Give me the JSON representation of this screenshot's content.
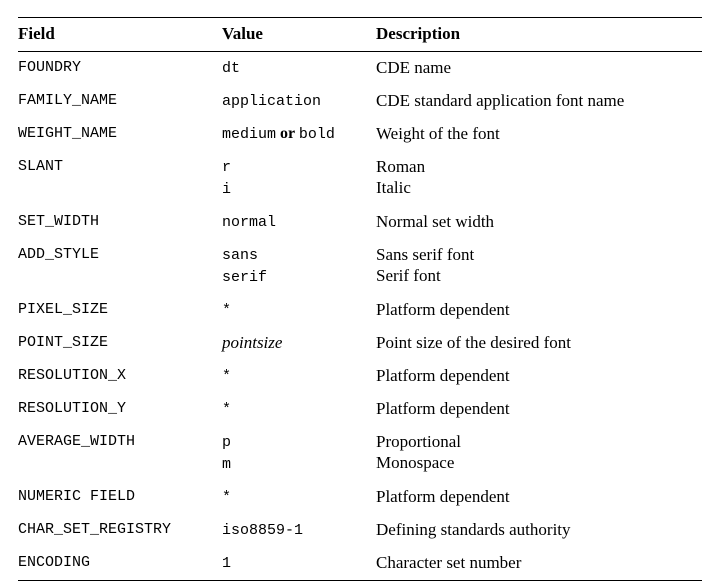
{
  "colors": {
    "background": "#ffffff",
    "text": "#000000",
    "rule": "#000000"
  },
  "table": {
    "headers": [
      "Field",
      "Value",
      "Description"
    ],
    "rows": [
      {
        "field": "FOUNDRY",
        "value_lines": [
          [
            {
              "t": "dt",
              "s": "mono"
            }
          ]
        ],
        "desc_lines": [
          "CDE name"
        ]
      },
      {
        "field": "FAMILY_NAME",
        "value_lines": [
          [
            {
              "t": "application",
              "s": "mono"
            }
          ]
        ],
        "desc_lines": [
          "CDE standard application font name"
        ]
      },
      {
        "field": "WEIGHT_NAME",
        "value_lines": [
          [
            {
              "t": "medium",
              "s": "mono"
            },
            {
              "t": " or ",
              "s": "or"
            },
            {
              "t": "bold",
              "s": "mono"
            }
          ]
        ],
        "desc_lines": [
          "Weight of the font"
        ]
      },
      {
        "field": "SLANT",
        "value_lines": [
          [
            {
              "t": "r",
              "s": "mono"
            }
          ],
          [
            {
              "t": "i",
              "s": "mono"
            }
          ]
        ],
        "desc_lines": [
          "Roman",
          "Italic"
        ]
      },
      {
        "field": "SET_WIDTH",
        "value_lines": [
          [
            {
              "t": "normal",
              "s": "mono"
            }
          ]
        ],
        "desc_lines": [
          "Normal set width"
        ]
      },
      {
        "field": "ADD_STYLE",
        "value_lines": [
          [
            {
              "t": "sans",
              "s": "mono"
            }
          ],
          [
            {
              "t": "serif",
              "s": "mono"
            }
          ]
        ],
        "desc_lines": [
          "Sans serif font",
          "Serif font"
        ]
      },
      {
        "field": "PIXEL_SIZE",
        "value_lines": [
          [
            {
              "t": "*",
              "s": "mono"
            }
          ]
        ],
        "desc_lines": [
          "Platform dependent"
        ]
      },
      {
        "field": "POINT_SIZE",
        "value_lines": [
          [
            {
              "t": "pointsize",
              "s": "italic"
            }
          ]
        ],
        "desc_lines": [
          "Point size of the desired font"
        ]
      },
      {
        "field": "RESOLUTION_X",
        "value_lines": [
          [
            {
              "t": "*",
              "s": "mono"
            }
          ]
        ],
        "desc_lines": [
          "Platform dependent"
        ]
      },
      {
        "field": "RESOLUTION_Y",
        "value_lines": [
          [
            {
              "t": "*",
              "s": "mono"
            }
          ]
        ],
        "desc_lines": [
          "Platform dependent"
        ]
      },
      {
        "field": "AVERAGE_WIDTH",
        "value_lines": [
          [
            {
              "t": "p",
              "s": "mono"
            }
          ],
          [
            {
              "t": "m",
              "s": "mono"
            }
          ]
        ],
        "desc_lines": [
          "Proportional",
          "Monospace"
        ]
      },
      {
        "field": "NUMERIC FIELD",
        "value_lines": [
          [
            {
              "t": "*",
              "s": "mono"
            }
          ]
        ],
        "desc_lines": [
          "Platform dependent"
        ]
      },
      {
        "field": "CHAR_SET_REGISTRY",
        "value_lines": [
          [
            {
              "t": "iso8859-1",
              "s": "mono"
            }
          ]
        ],
        "desc_lines": [
          "Defining standards authority"
        ]
      },
      {
        "field": "ENCODING",
        "value_lines": [
          [
            {
              "t": "1",
              "s": "mono"
            }
          ]
        ],
        "desc_lines": [
          "Character set number"
        ]
      }
    ]
  }
}
